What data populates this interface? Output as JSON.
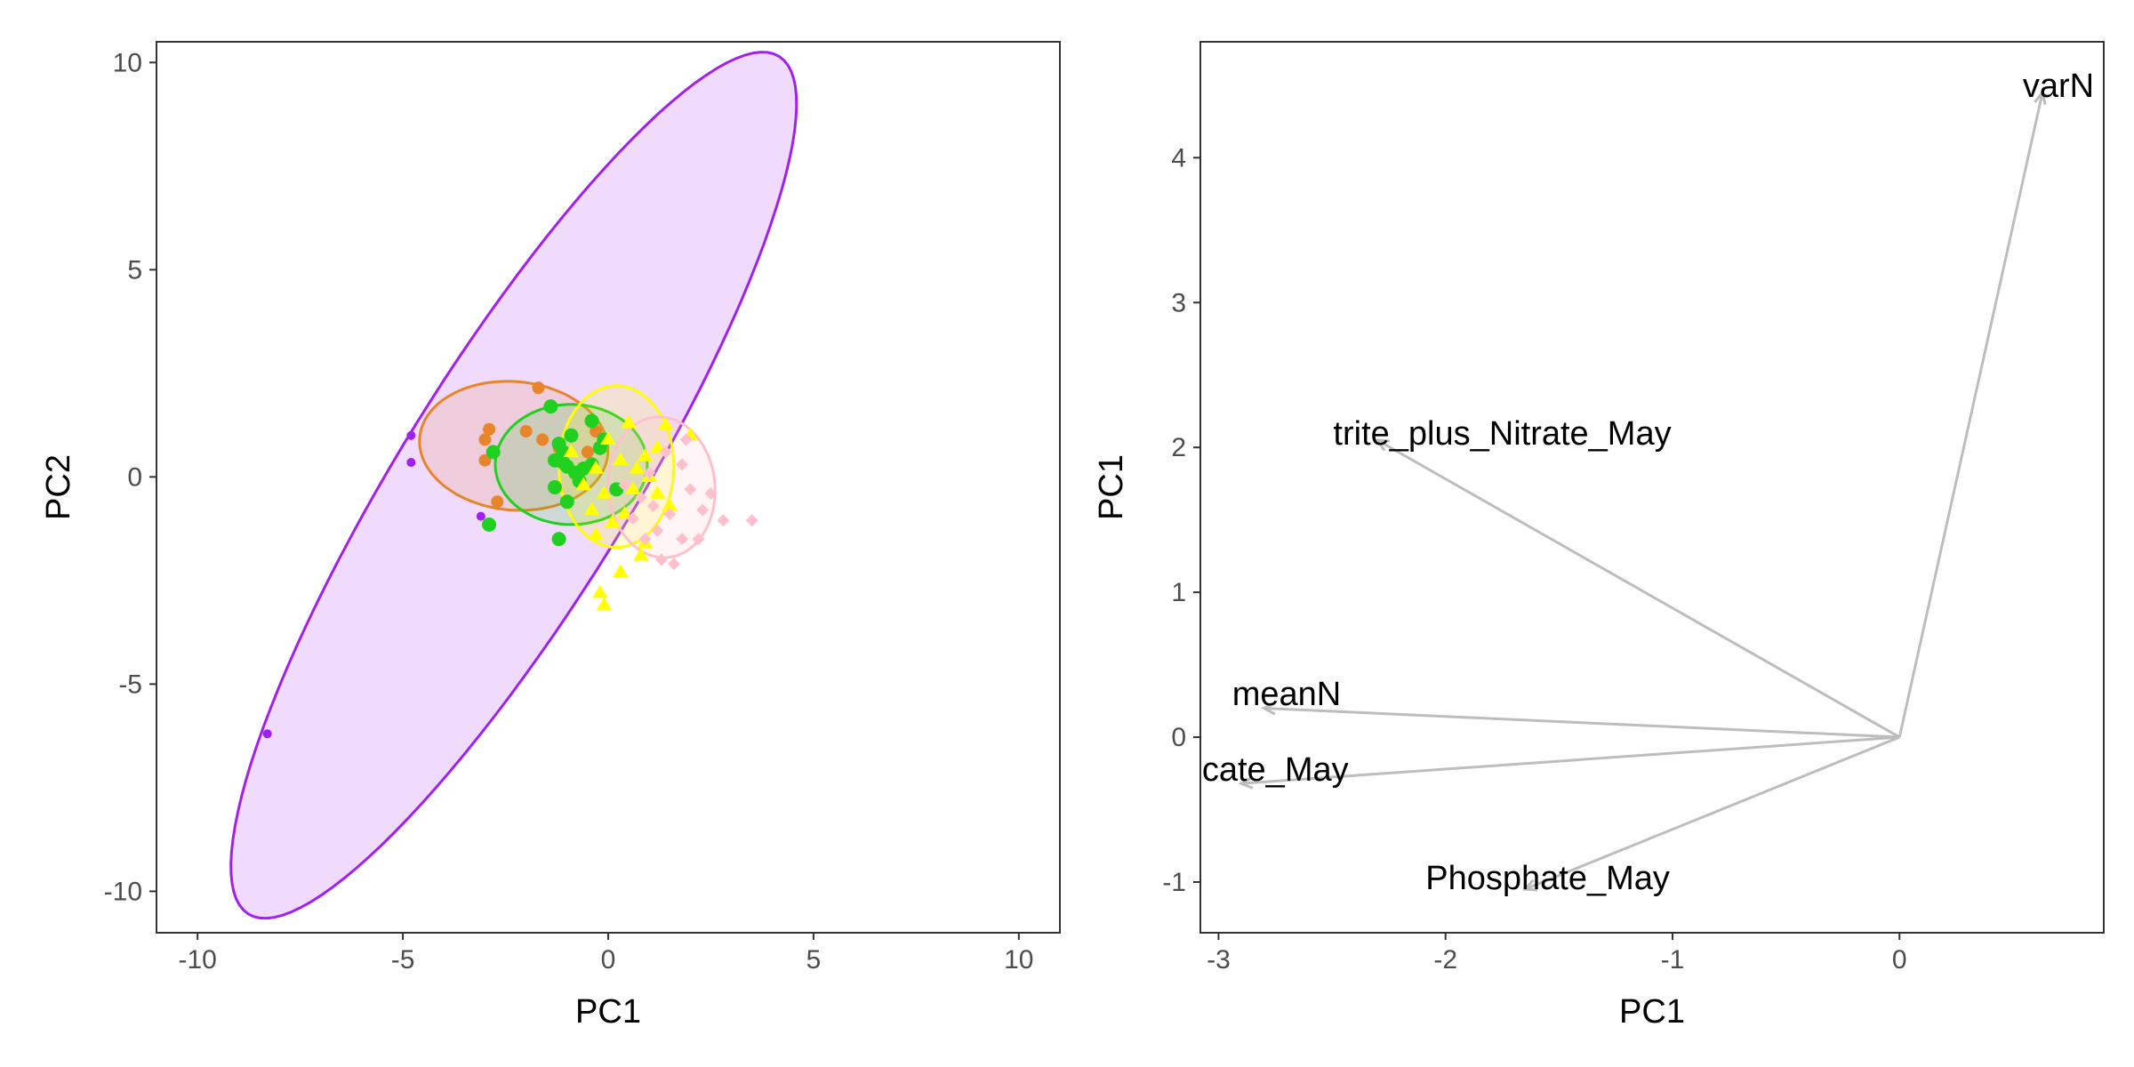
{
  "colors": {
    "group_purple": "#a020f0",
    "group_orange": "#e8842a",
    "group_green": "#1fd01f",
    "group_yellow": "#ffff00",
    "group_pink": "#ffc0cb",
    "arrow": "#bdbdbd",
    "panel_border": "#333333",
    "tick_text": "#4d4d4d"
  },
  "chart_data": [
    {
      "type": "scatter",
      "xlabel": "PC1",
      "ylabel": "PC2",
      "xlim": [
        -11,
        11
      ],
      "ylim": [
        -11,
        10.5
      ],
      "x_ticks": [
        -10,
        -5,
        0,
        5,
        10
      ],
      "y_ticks": [
        -10,
        -5,
        0,
        5,
        10
      ],
      "x_tick_labels": [
        "-10",
        "-5",
        "0",
        "5",
        "10"
      ],
      "y_tick_labels": [
        "-10",
        "-5",
        "0",
        "5",
        "10"
      ],
      "grid": false,
      "legend": "none",
      "ellipses": [
        {
          "group": "purple",
          "center": [
            -2.3,
            -0.2
          ],
          "a": 12.2,
          "b": 2.8,
          "angle_deg": 58,
          "fill_opacity": 0.16,
          "color": "#a020f0"
        },
        {
          "group": "orange",
          "center": [
            -2.3,
            0.75
          ],
          "a": 2.3,
          "b": 1.55,
          "angle_deg": -5,
          "fill_opacity": 0.16,
          "color": "#e8842a"
        },
        {
          "group": "green",
          "center": [
            -0.9,
            0.3
          ],
          "a": 1.85,
          "b": 1.45,
          "angle_deg": 0,
          "fill_opacity": 0.16,
          "color": "#1fd01f"
        },
        {
          "group": "yellow",
          "center": [
            0.2,
            0.25
          ],
          "a": 1.4,
          "b": 1.95,
          "angle_deg": 0,
          "fill_opacity": 0.16,
          "color": "#ffff00"
        },
        {
          "group": "pink",
          "center": [
            1.3,
            -0.25
          ],
          "a": 1.3,
          "b": 1.7,
          "angle_deg": 5,
          "fill_opacity": 0.16,
          "color": "#ffc0cb"
        }
      ],
      "series": [
        {
          "group": "purple",
          "shape": "circle",
          "size": 5,
          "color": "#a020f0",
          "points": [
            [
              -4.8,
              1.0
            ],
            [
              -4.8,
              0.35
            ],
            [
              -3.1,
              -0.95
            ],
            [
              -8.3,
              -6.2
            ]
          ]
        },
        {
          "group": "orange",
          "shape": "circle",
          "size": 7,
          "color": "#e8842a",
          "points": [
            [
              -1.7,
              2.15
            ],
            [
              -2.0,
              1.1
            ],
            [
              -2.9,
              1.15
            ],
            [
              -3.0,
              0.9
            ],
            [
              -3.0,
              0.4
            ],
            [
              -2.7,
              -0.6
            ],
            [
              -1.6,
              0.9
            ],
            [
              -1.2,
              0.7
            ],
            [
              -0.3,
              1.1
            ],
            [
              -0.5,
              0.6
            ]
          ]
        },
        {
          "group": "green",
          "shape": "circle",
          "size": 8,
          "color": "#1fd01f",
          "points": [
            [
              -1.4,
              1.7
            ],
            [
              -2.8,
              0.6
            ],
            [
              -2.9,
              -1.15
            ],
            [
              -1.2,
              0.8
            ],
            [
              -1.1,
              0.6
            ],
            [
              -1.3,
              0.4
            ],
            [
              -1.0,
              0.25
            ],
            [
              -0.8,
              0.1
            ],
            [
              -0.6,
              0.2
            ],
            [
              -0.4,
              1.35
            ],
            [
              -0.9,
              1.0
            ],
            [
              -1.2,
              -1.5
            ],
            [
              -1.0,
              -0.6
            ],
            [
              -0.4,
              0.3
            ],
            [
              -0.1,
              0.9
            ],
            [
              0.2,
              -0.3
            ],
            [
              -1.3,
              -0.25
            ],
            [
              -0.7,
              -0.1
            ],
            [
              -0.2,
              0.7
            ],
            [
              -1.1,
              0.35
            ]
          ]
        },
        {
          "group": "yellow",
          "shape": "triangle",
          "size": 8,
          "color": "#ffff00",
          "points": [
            [
              0.5,
              1.3
            ],
            [
              1.4,
              1.25
            ],
            [
              2.0,
              1.0
            ],
            [
              1.2,
              0.7
            ],
            [
              0.9,
              0.5
            ],
            [
              0.3,
              0.4
            ],
            [
              -0.3,
              0.2
            ],
            [
              -0.6,
              -0.2
            ],
            [
              -0.1,
              -0.4
            ],
            [
              0.6,
              -0.3
            ],
            [
              1.0,
              0.0
            ],
            [
              -0.4,
              -0.8
            ],
            [
              0.1,
              -1.1
            ],
            [
              0.9,
              -1.6
            ],
            [
              0.3,
              -2.3
            ],
            [
              -0.2,
              -2.8
            ],
            [
              -0.1,
              -3.1
            ],
            [
              0.8,
              -1.9
            ],
            [
              1.5,
              -0.7
            ],
            [
              -0.9,
              0.6
            ],
            [
              0.0,
              0.9
            ],
            [
              0.4,
              -0.9
            ],
            [
              1.2,
              -0.4
            ],
            [
              -0.3,
              -1.4
            ],
            [
              0.7,
              0.2
            ]
          ]
        },
        {
          "group": "pink",
          "shape": "diamond",
          "size": 7,
          "color": "#ffc0cb",
          "points": [
            [
              3.5,
              -1.05
            ],
            [
              2.8,
              -1.05
            ],
            [
              2.3,
              -0.8
            ],
            [
              2.0,
              -0.3
            ],
            [
              1.8,
              0.3
            ],
            [
              1.4,
              0.6
            ],
            [
              1.0,
              0.1
            ],
            [
              0.8,
              -0.5
            ],
            [
              1.2,
              -1.3
            ],
            [
              1.6,
              -2.1
            ],
            [
              1.8,
              -1.5
            ],
            [
              0.6,
              -1.0
            ],
            [
              2.2,
              -1.5
            ],
            [
              1.9,
              0.9
            ],
            [
              1.5,
              -0.9
            ],
            [
              1.1,
              -0.7
            ],
            [
              0.4,
              -0.2
            ],
            [
              2.5,
              -0.4
            ],
            [
              1.3,
              -2.0
            ],
            [
              0.9,
              -1.5
            ]
          ]
        }
      ]
    },
    {
      "type": "biplot-arrows",
      "xlabel": "PC1",
      "ylabel": "PC1",
      "xlim": [
        -3.08,
        0.9
      ],
      "ylim": [
        -1.35,
        4.8
      ],
      "x_ticks": [
        -3,
        -2,
        -1,
        0
      ],
      "y_ticks": [
        -1,
        0,
        1,
        2,
        3,
        4
      ],
      "x_tick_labels": [
        "-3",
        "-2",
        "-1",
        "0"
      ],
      "y_tick_labels": [
        "-1",
        "0",
        "1",
        "2",
        "3",
        "4"
      ],
      "grid": false,
      "legend": "none",
      "origin": [
        0,
        0
      ],
      "arrows": [
        {
          "label": "varN",
          "x": 0.63,
          "y": 4.45
        },
        {
          "label": "trite_plus_Nitrate_May",
          "x": -2.3,
          "y": 2.05
        },
        {
          "label": "meanN",
          "x": -2.8,
          "y": 0.2
        },
        {
          "label": "cate_May",
          "x": -2.9,
          "y": -0.32
        },
        {
          "label": "Phosphate_May",
          "x": -1.65,
          "y": -1.05
        }
      ],
      "label_positions": [
        {
          "label": "varN",
          "lx": 0.7,
          "ly": 4.5
        },
        {
          "label": "trite_plus_Nitrate_May",
          "lx": -1.75,
          "ly": 2.1
        },
        {
          "label": "meanN",
          "lx": -2.7,
          "ly": 0.3
        },
        {
          "label": "cate_May",
          "lx": -2.75,
          "ly": -0.22
        },
        {
          "label": "Phosphate_May",
          "lx": -1.55,
          "ly": -0.97
        }
      ]
    }
  ]
}
